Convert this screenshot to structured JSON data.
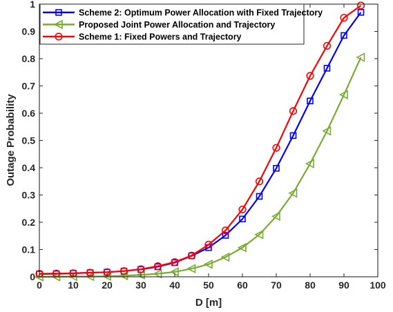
{
  "chart_data": {
    "type": "line",
    "xlabel": "D [m]",
    "ylabel": "Outage Probability",
    "xlim": [
      0,
      100
    ],
    "ylim": [
      0,
      1
    ],
    "xticks": [
      0,
      10,
      20,
      30,
      40,
      50,
      60,
      70,
      80,
      90,
      100
    ],
    "yticks": [
      0,
      0.1,
      0.2,
      0.3,
      0.4,
      0.5,
      0.6,
      0.7,
      0.8,
      0.9,
      1
    ],
    "xtick_labels": [
      "0",
      "10",
      "20",
      "30",
      "40",
      "50",
      "60",
      "70",
      "80",
      "90",
      "100"
    ],
    "ytick_labels": [
      "0",
      "0.1",
      "0.2",
      "0.3",
      "0.4",
      "0.5",
      "0.6",
      "0.7",
      "0.8",
      "0.9",
      "1"
    ],
    "grid": false,
    "legend_position": "top-left",
    "x": [
      0,
      5,
      10,
      15,
      20,
      25,
      30,
      35,
      40,
      45,
      50,
      55,
      60,
      65,
      70,
      75,
      80,
      85,
      90,
      95
    ],
    "series": [
      {
        "name": "Scheme 2: Optimum Power Allocation with Fixed Trajectory",
        "color": "#0000ff",
        "marker": "square",
        "values": [
          0.01,
          0.011,
          0.013,
          0.015,
          0.017,
          0.021,
          0.027,
          0.037,
          0.052,
          0.077,
          0.107,
          0.152,
          0.212,
          0.295,
          0.398,
          0.518,
          0.645,
          0.765,
          0.885,
          0.97
        ]
      },
      {
        "name": "Proposed Joint Power Allocation and Trajectory",
        "color": "#77ac30",
        "marker": "triangle-left",
        "values": [
          0.0,
          0.0,
          0.001,
          0.001,
          0.002,
          0.004,
          0.007,
          0.011,
          0.018,
          0.03,
          0.046,
          0.072,
          0.107,
          0.155,
          0.222,
          0.307,
          0.415,
          0.535,
          0.668,
          0.805
        ]
      },
      {
        "name": "Scheme 1: Fixed Powers and Trajectory",
        "color": "#ff0000",
        "marker": "circle",
        "values": [
          0.011,
          0.012,
          0.013,
          0.015,
          0.017,
          0.021,
          0.028,
          0.039,
          0.054,
          0.078,
          0.118,
          0.17,
          0.247,
          0.35,
          0.473,
          0.608,
          0.737,
          0.847,
          0.95,
          0.995
        ]
      }
    ]
  }
}
